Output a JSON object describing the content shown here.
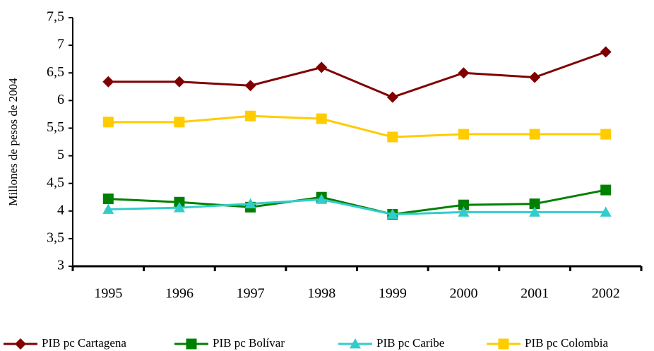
{
  "chart_data": {
    "type": "line",
    "y_label": "Millones de pesos de 2004",
    "categories": [
      "1995",
      "1996",
      "1997",
      "1998",
      "1999",
      "2000",
      "2001",
      "2002"
    ],
    "series": [
      {
        "name": "PIB pc Cartagena",
        "color": "#800000",
        "marker": "diamond",
        "values": [
          6.34,
          6.34,
          6.27,
          6.6,
          6.06,
          6.5,
          6.42,
          6.88
        ]
      },
      {
        "name": "PIB pc Bolívar",
        "color": "#008000",
        "marker": "square",
        "values": [
          4.22,
          4.16,
          4.07,
          4.25,
          3.94,
          4.11,
          4.13,
          4.38
        ]
      },
      {
        "name": "PIB pc Caribe",
        "color": "#33cccc",
        "marker": "triangle",
        "values": [
          4.03,
          4.06,
          4.13,
          4.21,
          3.94,
          3.98,
          3.98,
          3.98
        ]
      },
      {
        "name": "PIB pc Colombia",
        "color": "#ffcc00",
        "marker": "square",
        "values": [
          5.61,
          5.61,
          5.72,
          5.67,
          5.34,
          5.39,
          5.39,
          5.39
        ]
      }
    ],
    "ylim": [
      3,
      7.5
    ],
    "yticks": [
      3,
      {
        "value": 3.5,
        "label": "3,5"
      },
      4,
      {
        "value": 4.5,
        "label": "4,5"
      },
      5,
      {
        "value": 5.5,
        "label": "5,5"
      },
      6,
      {
        "value": 6.5,
        "label": "6,5"
      },
      7,
      {
        "value": 7.5,
        "label": "7,5"
      }
    ],
    "grid": false,
    "legend": "bottom"
  }
}
